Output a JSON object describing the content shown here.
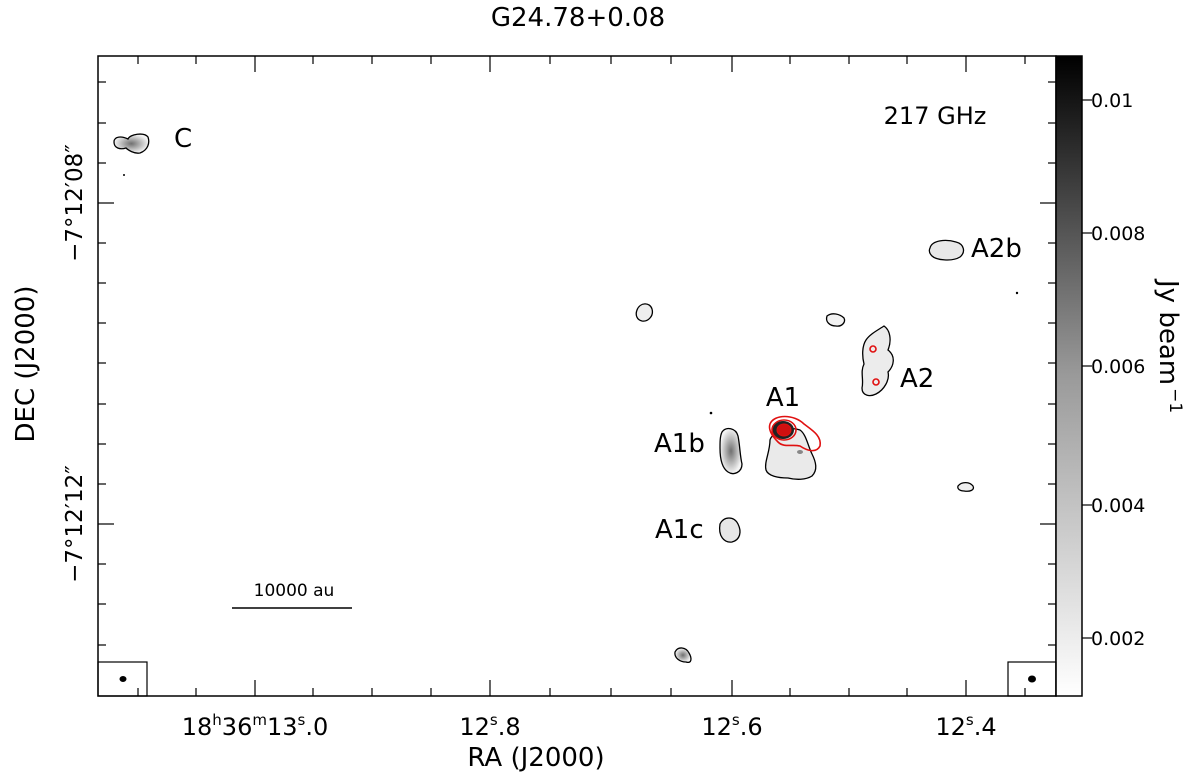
{
  "title": "G24.78+0.08",
  "frequency_label": "217 GHz",
  "scale_bar_label": "10000 au",
  "axes": {
    "x_label": "RA (J2000)",
    "y_label": "DEC (J2000)",
    "x_ticks": [
      {
        "h": "18",
        "m": "36",
        "s": "13",
        "frac": ".0",
        "prefix": ""
      },
      {
        "h": "",
        "m": "",
        "s": "12",
        "frac": ".8",
        "prefix": ""
      },
      {
        "h": "",
        "m": "",
        "s": "12",
        "frac": ".6",
        "prefix": ""
      },
      {
        "h": "",
        "m": "",
        "s": "12",
        "frac": ".4",
        "prefix": ""
      }
    ],
    "y_ticks": [
      "−7°12′08″",
      "−7°12′12″"
    ]
  },
  "colorbar": {
    "label": "Jy beam",
    "label_exponent": "−1",
    "ticks": [
      "0.01",
      "0.008",
      "0.006",
      "0.004",
      "0.002"
    ],
    "range": [
      0.0013,
      0.0106
    ]
  },
  "sources": [
    "C",
    "A2b",
    "A2",
    "A1",
    "A1b",
    "A1c"
  ],
  "colors": {
    "contour_black": "#000000",
    "contour_red": "#e01010",
    "frame": "#000000"
  }
}
